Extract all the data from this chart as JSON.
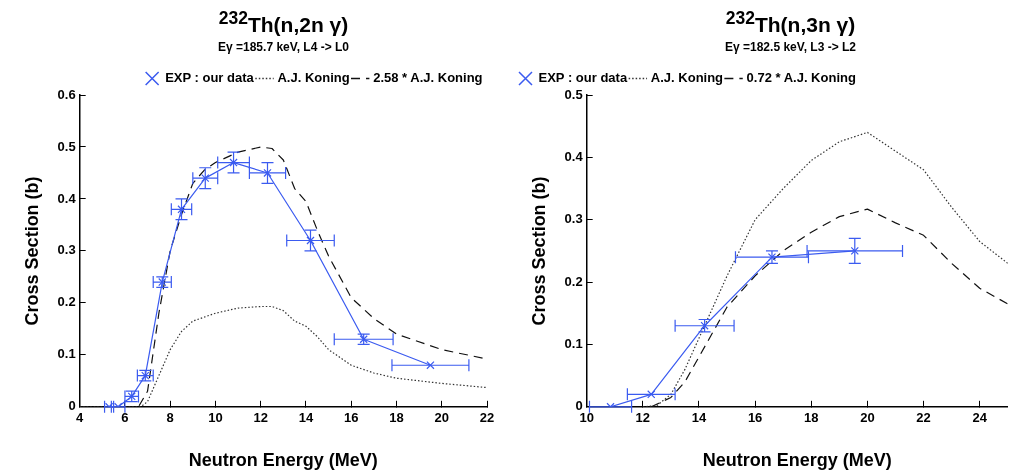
{
  "chart_data": [
    {
      "type": "line",
      "title": "$^{232}$Th(n,2n γ)",
      "subtitle": "Eγ =185.7 keV, L4 -> L0",
      "xlabel": "Neutron Energy (MeV)",
      "ylabel": "Cross Section (b)",
      "xlim": [
        4,
        22
      ],
      "xticks": [
        4,
        6,
        8,
        10,
        12,
        14,
        16,
        18,
        20,
        22
      ],
      "ylim": [
        0,
        0.6
      ],
      "yticks": [
        0,
        0.1,
        0.2,
        0.3,
        0.4,
        0.5,
        0.6
      ],
      "grid": false,
      "legend": "top right",
      "series": [
        {
          "name": "EXP : our data",
          "color": "#3b5bf0",
          "marker": "cross",
          "line_style": "solid",
          "x": [
            5.3,
            5.7,
            6.3,
            6.9,
            7.65,
            8.5,
            9.55,
            10.8,
            12.3,
            14.2,
            16.55,
            19.5
          ],
          "values": [
            0,
            0,
            0.02,
            0.06,
            0.24,
            0.38,
            0.44,
            0.47,
            0.45,
            0.32,
            0.13,
            0.08
          ],
          "xerrors": [
            0.2,
            0.3,
            0.3,
            0.35,
            0.4,
            0.45,
            0.55,
            0.7,
            0.8,
            1.05,
            1.3,
            1.7
          ],
          "errors": [
            null,
            null,
            0.01,
            0.01,
            0.01,
            0.02,
            0.02,
            0.02,
            0.02,
            0.02,
            0.01,
            null
          ]
        },
        {
          "name": "A.J. Koning",
          "color": "#333333",
          "marker": "none",
          "line_style": "dotted",
          "x": [
            4,
            6.7,
            7,
            7.5,
            8,
            8.5,
            9,
            10,
            11,
            12,
            12.5,
            13,
            13.5,
            14,
            14.5,
            15,
            16,
            17,
            18,
            20,
            22
          ],
          "values": [
            0,
            0,
            0.01,
            0.06,
            0.11,
            0.145,
            0.165,
            0.18,
            0.19,
            0.193,
            0.193,
            0.185,
            0.165,
            0.155,
            0.135,
            0.11,
            0.08,
            0.065,
            0.055,
            0.045,
            0.037
          ]
        },
        {
          "name": "2.58 * A.J. Koning",
          "color": "#111111",
          "marker": "none",
          "line_style": "dashed",
          "x": [
            4,
            6.6,
            7,
            7.5,
            8,
            8.5,
            9,
            9.5,
            10,
            11,
            12,
            12.5,
            13,
            13.5,
            14,
            14.5,
            15,
            16,
            17,
            18,
            20,
            22
          ],
          "values": [
            0,
            0,
            0.03,
            0.18,
            0.3,
            0.37,
            0.43,
            0.455,
            0.47,
            0.49,
            0.5,
            0.497,
            0.475,
            0.42,
            0.395,
            0.34,
            0.29,
            0.21,
            0.17,
            0.14,
            0.11,
            0.092
          ]
        }
      ]
    },
    {
      "type": "line",
      "title": "$^{232}$Th(n,3n γ)",
      "subtitle": "Eγ =182.5 keV, L3 -> L2",
      "xlabel": "Neutron Energy (MeV)",
      "ylabel": "Cross Section (b)",
      "xlim": [
        10,
        25
      ],
      "xticks": [
        10,
        12,
        14,
        16,
        18,
        20,
        22,
        24
      ],
      "ylim": [
        0,
        0.5
      ],
      "yticks": [
        0,
        0.1,
        0.2,
        0.3,
        0.4,
        0.5
      ],
      "grid": false,
      "legend": "top left",
      "series": [
        {
          "name": "EXP : our data",
          "color": "#3b5bf0",
          "marker": "cross",
          "line_style": "solid",
          "x": [
            10.85,
            12.3,
            14.2,
            16.6,
            19.55
          ],
          "values": [
            0,
            0.02,
            0.13,
            0.24,
            0.25
          ],
          "xerrors": [
            0.75,
            0.85,
            1.05,
            1.3,
            1.7
          ],
          "errors": [
            null,
            null,
            0.01,
            0.01,
            0.02
          ]
        },
        {
          "name": "A.J. Koning",
          "color": "#333333",
          "marker": "none",
          "line_style": "dotted",
          "x": [
            12,
            12.5,
            13,
            13.5,
            14,
            14.5,
            15,
            15.5,
            16,
            17,
            18,
            19,
            20,
            21,
            22,
            23,
            24,
            25
          ],
          "values": [
            0,
            0.002,
            0.02,
            0.06,
            0.11,
            0.16,
            0.21,
            0.255,
            0.3,
            0.35,
            0.395,
            0.425,
            0.44,
            0.41,
            0.38,
            0.32,
            0.265,
            0.23
          ]
        },
        {
          "name": "0.72 * A.J. Koning",
          "color": "#111111",
          "marker": "none",
          "line_style": "dashed",
          "x": [
            12.3,
            13,
            13.5,
            14,
            14.5,
            15,
            16,
            17,
            18,
            19,
            20,
            21,
            22,
            23,
            24,
            25
          ],
          "values": [
            0,
            0.015,
            0.04,
            0.08,
            0.12,
            0.16,
            0.21,
            0.25,
            0.28,
            0.305,
            0.317,
            0.295,
            0.275,
            0.23,
            0.19,
            0.165
          ]
        }
      ]
    }
  ]
}
